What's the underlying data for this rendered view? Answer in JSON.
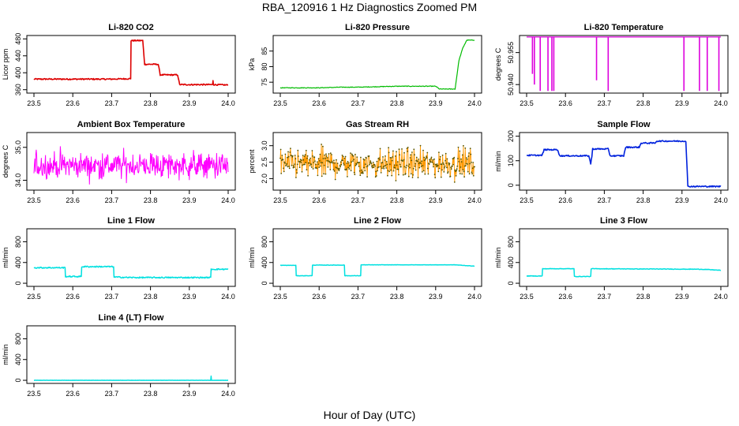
{
  "title": "RBA_120916  1 Hz Diagnostics Zoomed PM",
  "xlabel": "Hour of Day (UTC)",
  "chart_data": [
    {
      "type": "line",
      "title": "Li-820 CO2",
      "ylabel": "Licor ppm",
      "color": "#dd0000",
      "lineWidth": 1.6,
      "xlim": [
        23.5,
        24.0
      ],
      "ylim": [
        352,
        488
      ],
      "xticks": [
        "23.5",
        "23.6",
        "23.7",
        "23.8",
        "23.9",
        "24.0"
      ],
      "yticks": [
        "360",
        "400",
        "440",
        "480"
      ],
      "series": [
        {
          "x": [
            23.5,
            23.6,
            23.7,
            23.749,
            23.75,
            23.78,
            23.785,
            23.82,
            23.825,
            23.87,
            23.875,
            23.96,
            23.961,
            23.962,
            24.0
          ],
          "y": [
            385,
            385,
            385,
            386,
            476,
            476,
            420,
            420,
            395,
            395,
            372,
            372,
            382,
            372,
            371
          ]
        }
      ],
      "noise": 1.5
    },
    {
      "type": "line",
      "title": "Li-820 Pressure",
      "ylabel": "kPa",
      "color": "#00bb00",
      "lineWidth": 1.2,
      "xlim": [
        23.5,
        24.0
      ],
      "ylim": [
        71.5,
        90
      ],
      "xticks": [
        "23.5",
        "23.6",
        "23.7",
        "23.8",
        "23.9",
        "24.0"
      ],
      "yticks": [
        "75",
        "80",
        "85"
      ],
      "series": [
        {
          "x": [
            23.5,
            23.6,
            23.66,
            23.7,
            23.8,
            23.9,
            23.91,
            23.95,
            23.96,
            23.97,
            23.98,
            24.0
          ],
          "y": [
            73.2,
            73.2,
            73.4,
            73.4,
            73.7,
            73.7,
            72.8,
            72.8,
            82,
            86,
            88.5,
            88.5
          ]
        }
      ],
      "noise": 0.1
    },
    {
      "type": "line",
      "title": "Li-820 Temperature",
      "ylabel": "degrees C",
      "color": "#dd00dd",
      "lineWidth": 1.2,
      "xlim": [
        23.5,
        24.0
      ],
      "ylim": [
        50.936,
        50.963
      ],
      "xticks": [
        "23.5",
        "23.6",
        "23.7",
        "23.8",
        "23.9",
        "24.0"
      ],
      "yticks": [
        "50.940",
        "50.955"
      ],
      "baseline": 50.9623,
      "dips": [
        [
          23.515,
          50.945
        ],
        [
          23.52,
          50.94
        ],
        [
          23.535,
          50.937
        ],
        [
          23.555,
          50.937
        ],
        [
          23.565,
          50.937
        ],
        [
          23.57,
          50.937
        ],
        [
          23.68,
          50.942
        ],
        [
          23.71,
          50.937
        ],
        [
          23.905,
          50.937
        ],
        [
          23.945,
          50.937
        ],
        [
          23.965,
          50.937
        ],
        [
          23.995,
          50.937
        ]
      ]
    },
    {
      "type": "line",
      "title": "Ambient Box Temperature",
      "ylabel": "degrees C",
      "color": "#ff00ff",
      "lineWidth": 1.0,
      "xlim": [
        23.5,
        24.0
      ],
      "ylim": [
        33.7,
        35.45
      ],
      "xticks": [
        "23.5",
        "23.6",
        "23.7",
        "23.8",
        "23.9",
        "24.0"
      ],
      "yticks": [
        "34.0",
        "35.0"
      ],
      "noise_band": {
        "center": 34.45,
        "amplitude": 0.55,
        "n": 420
      }
    },
    {
      "type": "scatter",
      "title": "Gas Stream RH",
      "ylabel": "percent",
      "color": "#ff9900",
      "markerColor": "#555500",
      "xlim": [
        23.5,
        24.0
      ],
      "ylim": [
        1.65,
        3.4
      ],
      "xticks": [
        "23.5",
        "23.6",
        "23.7",
        "23.8",
        "23.9",
        "24.0"
      ],
      "yticks": [
        "2.0",
        "2.5",
        "3.0"
      ],
      "noise_band": {
        "center": 2.45,
        "amplitude": 0.6,
        "n": 420
      }
    },
    {
      "type": "line",
      "title": "Sample Flow",
      "ylabel": "ml/min",
      "color": "#0022dd",
      "lineWidth": 1.6,
      "xlim": [
        23.5,
        24.0
      ],
      "ylim": [
        -20,
        215
      ],
      "xticks": [
        "23.5",
        "23.6",
        "23.7",
        "23.8",
        "23.9",
        "24.0"
      ],
      "yticks": [
        "0",
        "100",
        "200"
      ],
      "series": [
        {
          "x": [
            23.5,
            23.54,
            23.545,
            23.58,
            23.585,
            23.66,
            23.665,
            23.668,
            23.67,
            23.71,
            23.715,
            23.75,
            23.755,
            23.79,
            23.795,
            23.83,
            23.835,
            23.91,
            23.915,
            24.0
          ],
          "y": [
            122,
            122,
            145,
            145,
            120,
            120,
            88,
            118,
            148,
            148,
            120,
            120,
            155,
            155,
            172,
            172,
            180,
            180,
            -5,
            -5
          ]
        }
      ],
      "noise": 2.5
    },
    {
      "type": "line",
      "title": "Line 1 Flow",
      "ylabel": "ml/min",
      "color": "#00e0e0",
      "lineWidth": 1.5,
      "xlim": [
        23.5,
        24.0
      ],
      "ylim": [
        -60,
        1050
      ],
      "xticks": [
        "23.5",
        "23.6",
        "23.7",
        "23.8",
        "23.9",
        "24.0"
      ],
      "yticks": [
        "0",
        "400",
        "800"
      ],
      "series": [
        {
          "x": [
            23.5,
            23.58,
            23.581,
            23.622,
            23.623,
            23.705,
            23.706,
            23.75,
            23.955,
            23.956,
            24.0
          ],
          "y": [
            300,
            300,
            130,
            130,
            320,
            320,
            120,
            110,
            110,
            270,
            270
          ]
        }
      ],
      "noise": 12
    },
    {
      "type": "line",
      "title": "Line 2 Flow",
      "ylabel": "ml/min",
      "color": "#00e0e0",
      "lineWidth": 1.5,
      "xlim": [
        23.5,
        24.0
      ],
      "ylim": [
        -60,
        1050
      ],
      "xticks": [
        "23.5",
        "23.6",
        "23.7",
        "23.8",
        "23.9",
        "24.0"
      ],
      "yticks": [
        "0",
        "400",
        "800"
      ],
      "series": [
        {
          "x": [
            23.5,
            23.54,
            23.541,
            23.582,
            23.583,
            23.665,
            23.666,
            23.707,
            23.708,
            23.95,
            24.0
          ],
          "y": [
            345,
            345,
            145,
            145,
            350,
            350,
            145,
            145,
            355,
            355,
            330
          ]
        }
      ],
      "noise": 3
    },
    {
      "type": "line",
      "title": "Line 3 Flow",
      "ylabel": "ml/min",
      "color": "#00e0e0",
      "lineWidth": 1.5,
      "xlim": [
        23.5,
        24.0
      ],
      "ylim": [
        -60,
        1050
      ],
      "xticks": [
        "23.5",
        "23.6",
        "23.7",
        "23.8",
        "23.9",
        "24.0"
      ],
      "yticks": [
        "0",
        "400",
        "800"
      ],
      "series": [
        {
          "x": [
            23.5,
            23.501,
            23.54,
            23.541,
            23.622,
            23.623,
            23.665,
            23.666,
            23.95,
            24.0
          ],
          "y": [
            140,
            140,
            140,
            280,
            280,
            130,
            130,
            280,
            270,
            250
          ]
        }
      ],
      "noise": 5
    },
    {
      "type": "line",
      "title": "Line 4 (LT) Flow",
      "ylabel": "ml/min",
      "color": "#00e0e0",
      "lineWidth": 1.5,
      "xlim": [
        23.5,
        24.0
      ],
      "ylim": [
        -60,
        1050
      ],
      "xticks": [
        "23.5",
        "23.6",
        "23.7",
        "23.8",
        "23.9",
        "24.0"
      ],
      "yticks": [
        "0",
        "400",
        "800"
      ],
      "series": [
        {
          "x": [
            23.5,
            23.955,
            23.956,
            23.957,
            23.96,
            24.0
          ],
          "y": [
            0,
            0,
            80,
            0,
            0,
            0
          ]
        }
      ],
      "noise": 1
    }
  ]
}
